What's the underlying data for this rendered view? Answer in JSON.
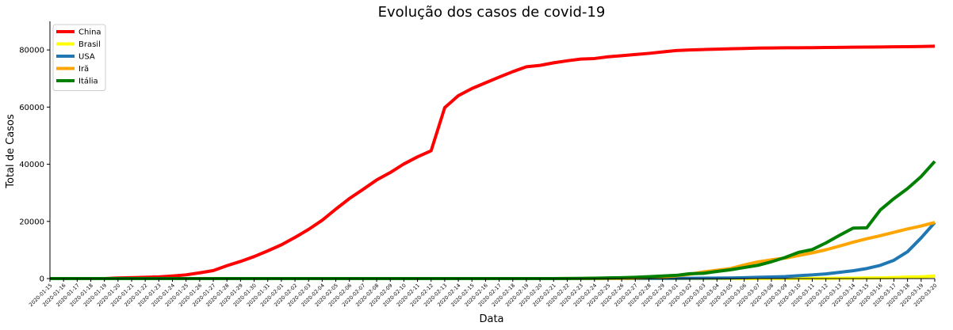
{
  "chart_data": {
    "type": "line",
    "title": "Evolução dos casos de covid-19",
    "xlabel": "Data",
    "ylabel": "Total de Casos",
    "ylim": [
      0,
      90000
    ],
    "yticks": [
      0,
      20000,
      40000,
      60000,
      80000
    ],
    "legend_position": "top-left",
    "x": [
      "2020-01-15",
      "2020-01-16",
      "2020-01-17",
      "2020-01-18",
      "2020-01-19",
      "2020-01-20",
      "2020-01-21",
      "2020-01-22",
      "2020-01-23",
      "2020-01-24",
      "2020-01-25",
      "2020-01-26",
      "2020-01-27",
      "2020-01-28",
      "2020-01-29",
      "2020-01-30",
      "2020-01-31",
      "2020-02-01",
      "2020-02-02",
      "2020-02-03",
      "2020-02-04",
      "2020-02-05",
      "2020-02-06",
      "2020-02-07",
      "2020-02-08",
      "2020-02-09",
      "2020-02-10",
      "2020-02-11",
      "2020-02-12",
      "2020-02-13",
      "2020-02-14",
      "2020-02-15",
      "2020-02-16",
      "2020-02-17",
      "2020-02-18",
      "2020-02-19",
      "2020-02-20",
      "2020-02-21",
      "2020-02-22",
      "2020-02-23",
      "2020-02-24",
      "2020-02-25",
      "2020-02-26",
      "2020-02-27",
      "2020-02-28",
      "2020-02-29",
      "2020-03-01",
      "2020-03-02",
      "2020-03-03",
      "2020-03-04",
      "2020-03-05",
      "2020-03-06",
      "2020-03-07",
      "2020-03-08",
      "2020-03-09",
      "2020-03-10",
      "2020-03-11",
      "2020-03-12",
      "2020-03-13",
      "2020-03-14",
      "2020-03-15",
      "2020-03-16",
      "2020-03-17",
      "2020-03-18",
      "2020-03-19",
      "2020-03-20"
    ],
    "series": [
      {
        "name": "China",
        "color": "#ff0000",
        "values": [
          0,
          0,
          0,
          0,
          0,
          200,
          300,
          450,
          600,
          900,
          1300,
          2000,
          2800,
          4500,
          6000,
          7700,
          9700,
          11800,
          14400,
          17200,
          20400,
          24300,
          28000,
          31200,
          34500,
          37100,
          40100,
          42600,
          44700,
          59800,
          64000,
          66500,
          68500,
          70500,
          72400,
          74100,
          74600,
          75500,
          76200,
          76800,
          77000,
          77600,
          78000,
          78400,
          78800,
          79300,
          79800,
          80000,
          80150,
          80270,
          80400,
          80500,
          80650,
          80700,
          80750,
          80750,
          80800,
          80850,
          80900,
          80950,
          81000,
          81050,
          81100,
          81150,
          81200,
          81300
        ]
      },
      {
        "name": "Brasil",
        "color": "#ffff00",
        "values": [
          0,
          0,
          0,
          0,
          0,
          0,
          0,
          0,
          0,
          0,
          0,
          0,
          0,
          0,
          0,
          0,
          0,
          0,
          0,
          0,
          0,
          0,
          0,
          0,
          0,
          0,
          0,
          0,
          0,
          0,
          0,
          0,
          0,
          0,
          0,
          0,
          0,
          0,
          0,
          0,
          0,
          0,
          1,
          1,
          1,
          2,
          2,
          2,
          2,
          4,
          8,
          13,
          19,
          25,
          30,
          34,
          52,
          77,
          98,
          121,
          200,
          234,
          346,
          529,
          621,
          904
        ]
      },
      {
        "name": "USA",
        "color": "#1f77b4",
        "values": [
          0,
          0,
          0,
          0,
          0,
          1,
          1,
          1,
          1,
          2,
          2,
          5,
          5,
          5,
          5,
          6,
          7,
          8,
          11,
          11,
          11,
          12,
          12,
          12,
          12,
          12,
          13,
          13,
          13,
          14,
          15,
          15,
          15,
          15,
          15,
          15,
          15,
          15,
          15,
          15,
          35,
          35,
          53,
          57,
          60,
          68,
          75,
          100,
          124,
          158,
          221,
          319,
          435,
          541,
          704,
          994,
          1300,
          1630,
          2180,
          2730,
          3500,
          4630,
          6420,
          9400,
          14250,
          19600
        ]
      },
      {
        "name": "Irã",
        "color": "#ffa500",
        "values": [
          0,
          0,
          0,
          0,
          0,
          0,
          0,
          0,
          0,
          0,
          0,
          0,
          0,
          0,
          0,
          0,
          0,
          0,
          0,
          0,
          0,
          0,
          0,
          0,
          0,
          0,
          0,
          0,
          0,
          0,
          0,
          0,
          0,
          0,
          0,
          2,
          5,
          18,
          28,
          43,
          61,
          95,
          139,
          245,
          388,
          593,
          978,
          1501,
          2336,
          2922,
          3513,
          4747,
          5823,
          6566,
          7161,
          8042,
          9000,
          10075,
          11364,
          12729,
          13938,
          14991,
          16169,
          17361,
          18407,
          19644
        ]
      },
      {
        "name": "Itália",
        "color": "#008000",
        "values": [
          0,
          0,
          0,
          0,
          0,
          0,
          0,
          0,
          0,
          0,
          0,
          0,
          0,
          0,
          0,
          0,
          2,
          2,
          2,
          2,
          2,
          2,
          3,
          3,
          3,
          3,
          3,
          3,
          3,
          3,
          3,
          3,
          3,
          3,
          3,
          3,
          3,
          3,
          20,
          62,
          155,
          229,
          322,
          453,
          655,
          888,
          1128,
          1694,
          1835,
          2502,
          3089,
          3858,
          4636,
          5883,
          7375,
          9172,
          10149,
          12462,
          15113,
          17660,
          17750,
          24000,
          27980,
          31500,
          35700,
          41000
        ]
      }
    ]
  }
}
